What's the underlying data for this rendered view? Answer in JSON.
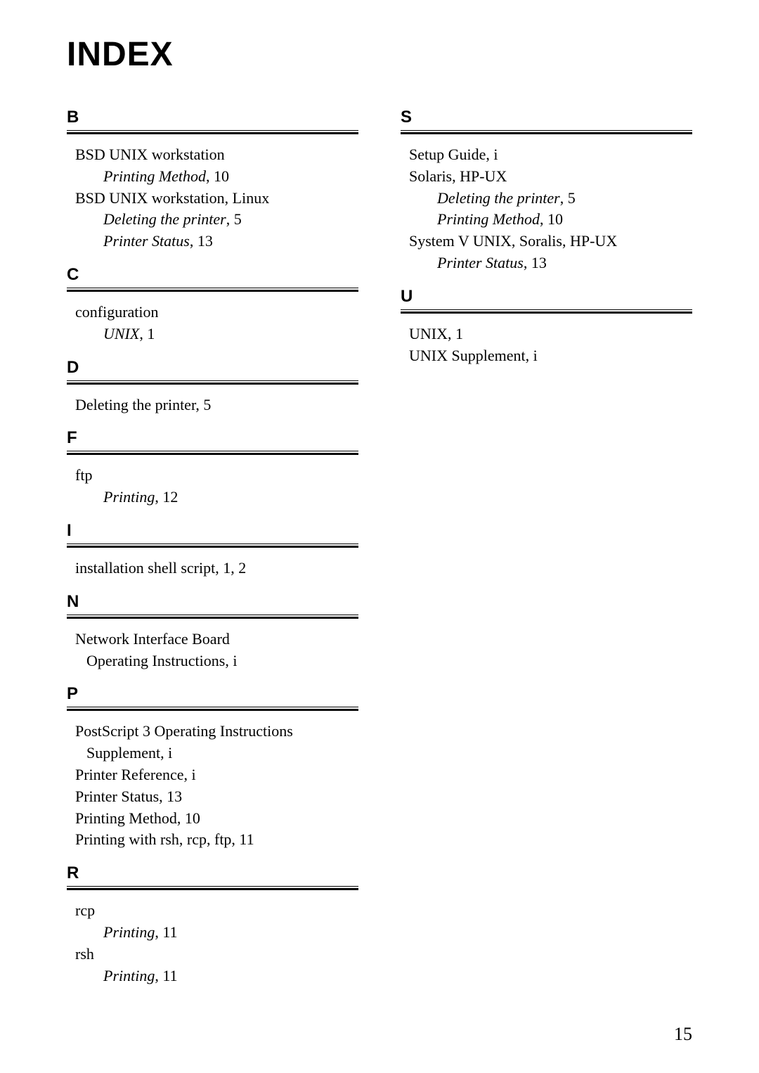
{
  "title": "INDEX",
  "pageNumber": "15",
  "left": {
    "B": {
      "letter": "B",
      "items": [
        {
          "text": "BSD UNIX workstation",
          "type": "entry"
        },
        {
          "text": "Printing Method",
          "page": ",   10",
          "type": "sub"
        },
        {
          "text": "BSD UNIX workstation, Linux",
          "type": "entry"
        },
        {
          "text": "Deleting the printer",
          "page": ",   5",
          "type": "sub"
        },
        {
          "text": "Printer Status",
          "page": ",   13",
          "type": "sub"
        }
      ]
    },
    "C": {
      "letter": "C",
      "items": [
        {
          "text": "configuration",
          "type": "entry"
        },
        {
          "text": "UNIX",
          "page": ",   1",
          "type": "sub"
        }
      ]
    },
    "D": {
      "letter": "D",
      "items": [
        {
          "text": "Deleting the printer,   5",
          "type": "entry"
        }
      ]
    },
    "F": {
      "letter": "F",
      "items": [
        {
          "text": "ftp",
          "type": "entry"
        },
        {
          "text": "Printing",
          "page": ",   12",
          "type": "sub"
        }
      ]
    },
    "I": {
      "letter": "I",
      "items": [
        {
          "text": "installation shell script,   1, 2",
          "type": "entry"
        }
      ]
    },
    "N": {
      "letter": "N",
      "items": [
        {
          "text": "Network Interface Board",
          "type": "entry"
        },
        {
          "text": "Operating Instructions,   i",
          "type": "subplain"
        }
      ]
    },
    "P": {
      "letter": "P",
      "items": [
        {
          "text": "PostScript 3 Operating Instructions",
          "type": "entry"
        },
        {
          "text": "Supplement,   i",
          "type": "subplain"
        },
        {
          "text": "Printer Reference,   i",
          "type": "entry"
        },
        {
          "text": "Printer Status,   13",
          "type": "entry"
        },
        {
          "text": "Printing Method,   10",
          "type": "entry"
        },
        {
          "text": "Printing with rsh, rcp, ftp,   11",
          "type": "entry"
        }
      ]
    },
    "R": {
      "letter": "R",
      "items": [
        {
          "text": "rcp",
          "type": "entry"
        },
        {
          "text": "Printing",
          "page": ",   11",
          "type": "sub"
        },
        {
          "text": "rsh",
          "type": "entry"
        },
        {
          "text": "Printing",
          "page": ",   11",
          "type": "sub"
        }
      ]
    }
  },
  "right": {
    "S": {
      "letter": "S",
      "items": [
        {
          "text": "Setup Guide,   i",
          "type": "entry"
        },
        {
          "text": "Solaris, HP-UX",
          "type": "entry"
        },
        {
          "text": "Deleting the printer",
          "page": ",   5",
          "type": "sub"
        },
        {
          "text": "Printing Method",
          "page": ",   10",
          "type": "sub"
        },
        {
          "text": "System V UNIX, Soralis, HP-UX",
          "type": "entry"
        },
        {
          "text": "Printer Status",
          "page": ",   13",
          "type": "sub"
        }
      ]
    },
    "U": {
      "letter": "U",
      "items": [
        {
          "text": "UNIX,   1",
          "type": "entry"
        },
        {
          "text": "UNIX Supplement,   i",
          "type": "entry"
        }
      ]
    }
  }
}
